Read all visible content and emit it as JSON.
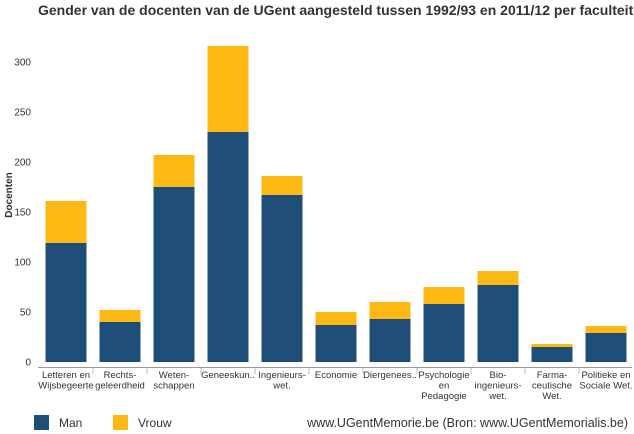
{
  "page": {
    "title": "Gender van de docenten van de UGent aangesteld tussen 1992/93 en 2011/12 per faculteit",
    "credit": "www.UGentMemorie.be (Bron: www.UGentMemorialis.be)"
  },
  "chart_data": {
    "type": "bar",
    "stacked": true,
    "title": "Gender van de docenten van de UGent aangesteld tussen 1992/93 en 2011/12 per faculteit",
    "xlabel": "",
    "ylabel": "Docenten",
    "ylim": [
      0,
      330
    ],
    "yticks": [
      0,
      50,
      100,
      150,
      200,
      250,
      300
    ],
    "grid": false,
    "legend_position": "bottom-left",
    "categories": [
      [
        "Letteren en",
        "Wijsbegeerte"
      ],
      [
        "Rechts-",
        "geleerdheid"
      ],
      [
        "Weten-",
        "schappen"
      ],
      [
        "Geneeskun.."
      ],
      [
        "Ingenieurs-",
        "wet."
      ],
      [
        "Economie"
      ],
      [
        "Diergenees.."
      ],
      [
        "Psychologie",
        "en",
        "Pedagogie"
      ],
      [
        "Bio-",
        "ingenieurs-",
        "wet."
      ],
      [
        "Farma-",
        "ceutische",
        "Wet."
      ],
      [
        "Politieke en",
        "Sociale Wet."
      ]
    ],
    "series": [
      {
        "name": "Man",
        "color": "#1F4E79",
        "values": [
          119,
          40,
          175,
          230,
          167,
          37,
          43,
          58,
          77,
          15,
          29
        ]
      },
      {
        "name": "Vrouw",
        "color": "#FDB813",
        "values": [
          42,
          12,
          32,
          86,
          19,
          13,
          17,
          17,
          14,
          3,
          7
        ]
      }
    ]
  }
}
